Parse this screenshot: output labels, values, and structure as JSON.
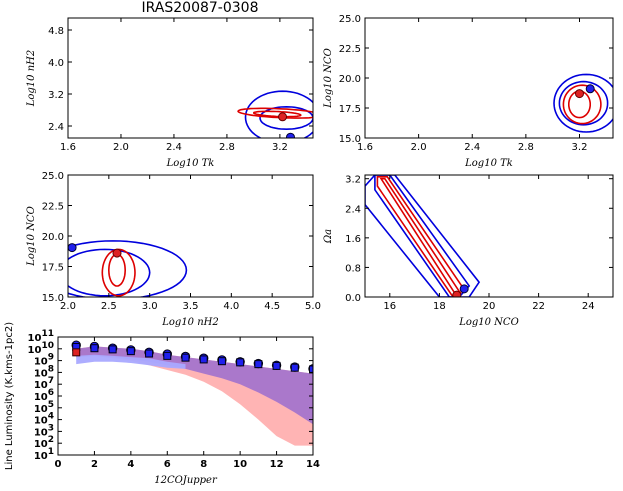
{
  "figure": {
    "title": "IRAS20087-0308"
  },
  "colors": {
    "blue": "#0000dd",
    "red": "#dd0000",
    "band_red": "#ffb0b0",
    "band_purple": "#a575cc",
    "band_blue": "#a9a9ff",
    "marker_blue": "#2020ee",
    "marker_red": "#dd2222"
  },
  "chart_data": [
    {
      "type": "contour",
      "id": "p1",
      "xlabel": "Log10 Tk",
      "ylabel": "Log10 nH2",
      "xlim": [
        1.6,
        3.45
      ],
      "ylim": [
        2.1,
        5.1
      ],
      "xticks": [
        "1.6",
        "2.0",
        "2.4",
        "2.8",
        "3.2"
      ],
      "xtick_values": [
        1.6,
        2.0,
        2.4,
        2.8,
        3.2
      ],
      "yticks": [
        "2.4",
        "3.2",
        "4.0",
        "4.8"
      ],
      "ytick_values": [
        2.4,
        3.2,
        4.0,
        4.8
      ],
      "best_fit_red": [
        3.22,
        2.63
      ],
      "best_fit_blue": [
        3.28,
        2.12
      ]
    },
    {
      "type": "contour",
      "id": "p2",
      "xlabel": "Log10 Tk",
      "ylabel": "Log10 NCO",
      "xlim": [
        1.6,
        3.45
      ],
      "ylim": [
        15.0,
        25.0
      ],
      "xticks": [
        "1.6",
        "2.0",
        "2.4",
        "2.8",
        "3.2"
      ],
      "xtick_values": [
        1.6,
        2.0,
        2.4,
        2.8,
        3.2
      ],
      "yticks": [
        "15.0",
        "17.5",
        "20.0",
        "22.5",
        "25.0"
      ],
      "ytick_values": [
        15.0,
        17.5,
        20.0,
        22.5,
        25.0
      ],
      "best_fit_red": [
        3.2,
        18.7
      ],
      "best_fit_blue": [
        3.28,
        19.1
      ]
    },
    {
      "type": "contour",
      "id": "p3",
      "xlabel": "Log10 nH2",
      "ylabel": "Log10 NCO",
      "xlim": [
        2.0,
        5.0
      ],
      "ylim": [
        15.0,
        25.0
      ],
      "xticks": [
        "2.0",
        "2.5",
        "3.0",
        "3.5",
        "4.0",
        "4.5",
        "5.0"
      ],
      "xtick_values": [
        2.0,
        2.5,
        3.0,
        3.5,
        4.0,
        4.5,
        5.0
      ],
      "yticks": [
        "15.0",
        "17.5",
        "20.0",
        "22.5",
        "25.0"
      ],
      "ytick_values": [
        15.0,
        17.5,
        20.0,
        22.5,
        25.0
      ],
      "best_fit_red": [
        2.6,
        18.6
      ],
      "best_fit_blue": [
        2.05,
        19.05
      ]
    },
    {
      "type": "contour",
      "id": "p4",
      "xlabel": "Log10 NCO",
      "ylabel": "Ωa",
      "xlim": [
        15.0,
        25.0
      ],
      "ylim": [
        0.0,
        3.3
      ],
      "xticks": [
        "16",
        "18",
        "20",
        "22",
        "24"
      ],
      "xtick_values": [
        16,
        18,
        20,
        22,
        24
      ],
      "yticks": [
        "0.0",
        "0.8",
        "1.6",
        "2.4",
        "3.2"
      ],
      "ytick_values": [
        0.0,
        0.8,
        1.6,
        2.4,
        3.2
      ],
      "best_fit_red": [
        18.7,
        0.05
      ],
      "best_fit_blue": [
        19.0,
        0.22
      ]
    },
    {
      "type": "sled",
      "id": "p5",
      "xlabel": "12COJupper",
      "ylabel": "Line Luminosity (K.kms-1pc2)",
      "xlim": [
        0,
        14
      ],
      "ylim_log": [
        1,
        11
      ],
      "xticks": [
        "0",
        "2",
        "4",
        "6",
        "8",
        "10",
        "12",
        "14"
      ],
      "xtick_values": [
        0,
        2,
        4,
        6,
        8,
        10,
        12,
        14
      ],
      "yticks": [
        "10",
        "10",
        "10",
        "10",
        "10",
        "10",
        "10",
        "10",
        "10",
        "10",
        "10"
      ],
      "ytick_exponents": [
        "1",
        "2",
        "3",
        "4",
        "5",
        "6",
        "7",
        "8",
        "9",
        "10",
        "11"
      ],
      "ytick_values": [
        1,
        2,
        3,
        4,
        5,
        6,
        7,
        8,
        9,
        10,
        11
      ],
      "observed_J": [
        1,
        2,
        3,
        4,
        5,
        6,
        7,
        8,
        9,
        10,
        11,
        12,
        13,
        14
      ],
      "model_circles_log": [
        10.3,
        10.2,
        10.05,
        9.9,
        9.7,
        9.55,
        9.35,
        9.2,
        9.05,
        8.9,
        8.75,
        8.6,
        8.45,
        8.3
      ],
      "model_squares_log": [
        10.15,
        10.05,
        9.95,
        9.8,
        9.6,
        9.4,
        9.25,
        9.1,
        8.95,
        8.85,
        8.7,
        8.55,
        8.4,
        8.25
      ],
      "observed_red_square": {
        "J": 1,
        "log": 9.7
      },
      "red_band_upper_log": [
        10.0,
        10.2,
        10.1,
        10.0,
        9.8,
        9.5,
        9.3,
        9.1,
        8.9,
        8.7,
        8.5,
        8.3,
        8.1,
        7.9
      ],
      "red_band_lower_log": [
        9.3,
        9.4,
        9.2,
        9.0,
        8.6,
        8.2,
        7.8,
        7.2,
        6.4,
        5.3,
        4.0,
        2.6,
        1.8,
        1.8
      ],
      "purple_band_upper_log": [
        10.0,
        10.2,
        10.1,
        10.0,
        9.8,
        9.5,
        9.3,
        9.1,
        8.9,
        8.7,
        8.5,
        8.3,
        8.1,
        7.9
      ],
      "purple_band_lower_log": [
        9.3,
        9.4,
        9.3,
        9.1,
        8.9,
        8.6,
        8.3,
        7.9,
        7.5,
        7.0,
        6.3,
        5.5,
        4.6,
        3.6
      ],
      "blue_band_upper_log": [
        9.4,
        9.5,
        9.4,
        9.3,
        9.2,
        8.9,
        8.7
      ],
      "blue_band_lower_log": [
        8.7,
        8.9,
        8.9,
        8.8,
        8.6,
        8.4,
        8.3
      ],
      "blue_band_J": [
        1,
        2,
        3,
        4,
        5,
        6,
        7
      ]
    }
  ]
}
